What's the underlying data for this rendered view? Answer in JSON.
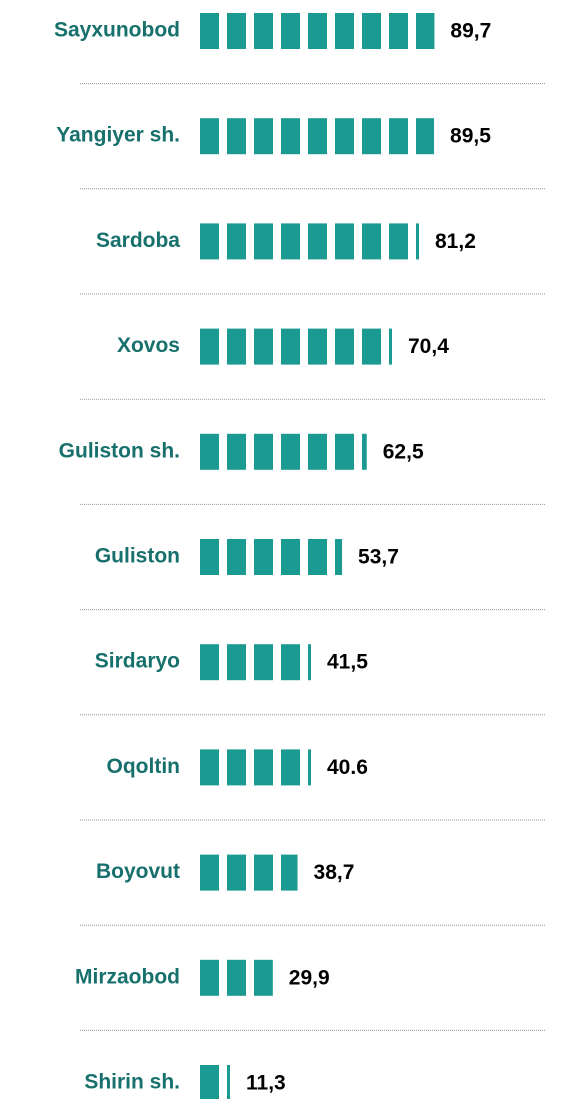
{
  "chart_data": {
    "type": "pictograph_bar",
    "categories": [
      "Sayxunobod",
      "Yangiyer sh.",
      "Sardoba",
      "Xovos",
      "Guliston sh.",
      "Guliston",
      "Sirdaryo",
      "Oqoltin",
      "Boyovut",
      "Mirzaobod",
      "Shirin sh."
    ],
    "values": [
      89.7,
      89.5,
      81.2,
      70.4,
      62.5,
      53.7,
      41.5,
      40.6,
      38.7,
      29.9,
      11.3
    ],
    "value_labels": [
      "89,7",
      "89,5",
      "81,2",
      "70,4",
      "62,5",
      "53,7",
      "41,5",
      "40.6",
      "38,7",
      "29,9",
      "11,3"
    ],
    "color": "#1b9a92",
    "label_color": "#17706c"
  }
}
